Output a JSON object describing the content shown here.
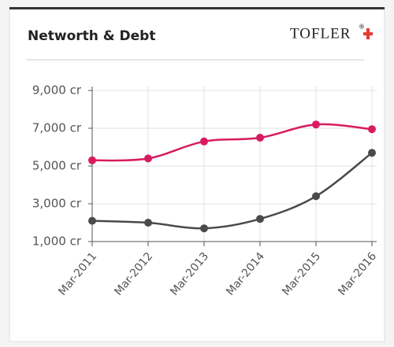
{
  "chart_data": {
    "type": "line",
    "title": "Networth & Debt",
    "logo": "TOFLER",
    "logo_mark": "®",
    "categories": [
      "Mar-2011",
      "Mar-2012",
      "Mar-2013",
      "Mar-2014",
      "Mar-2015",
      "Mar-2016"
    ],
    "series": [
      {
        "color": "#d81b60",
        "values": [
          5300,
          5400,
          6300,
          6500,
          7200,
          6950
        ]
      },
      {
        "color": "#4a4a4a",
        "values": [
          2100,
          2000,
          1700,
          2200,
          3400,
          5700
        ]
      }
    ],
    "ylim": [
      1000,
      9000
    ],
    "yticks": [
      {
        "value": 1000,
        "label": "1,000 cr"
      },
      {
        "value": 3000,
        "label": "3,000 cr"
      },
      {
        "value": 5000,
        "label": "5,000 cr"
      },
      {
        "value": 7000,
        "label": "7,000 cr"
      },
      {
        "value": 9000,
        "label": "9,000 cr"
      }
    ],
    "grid": true
  }
}
